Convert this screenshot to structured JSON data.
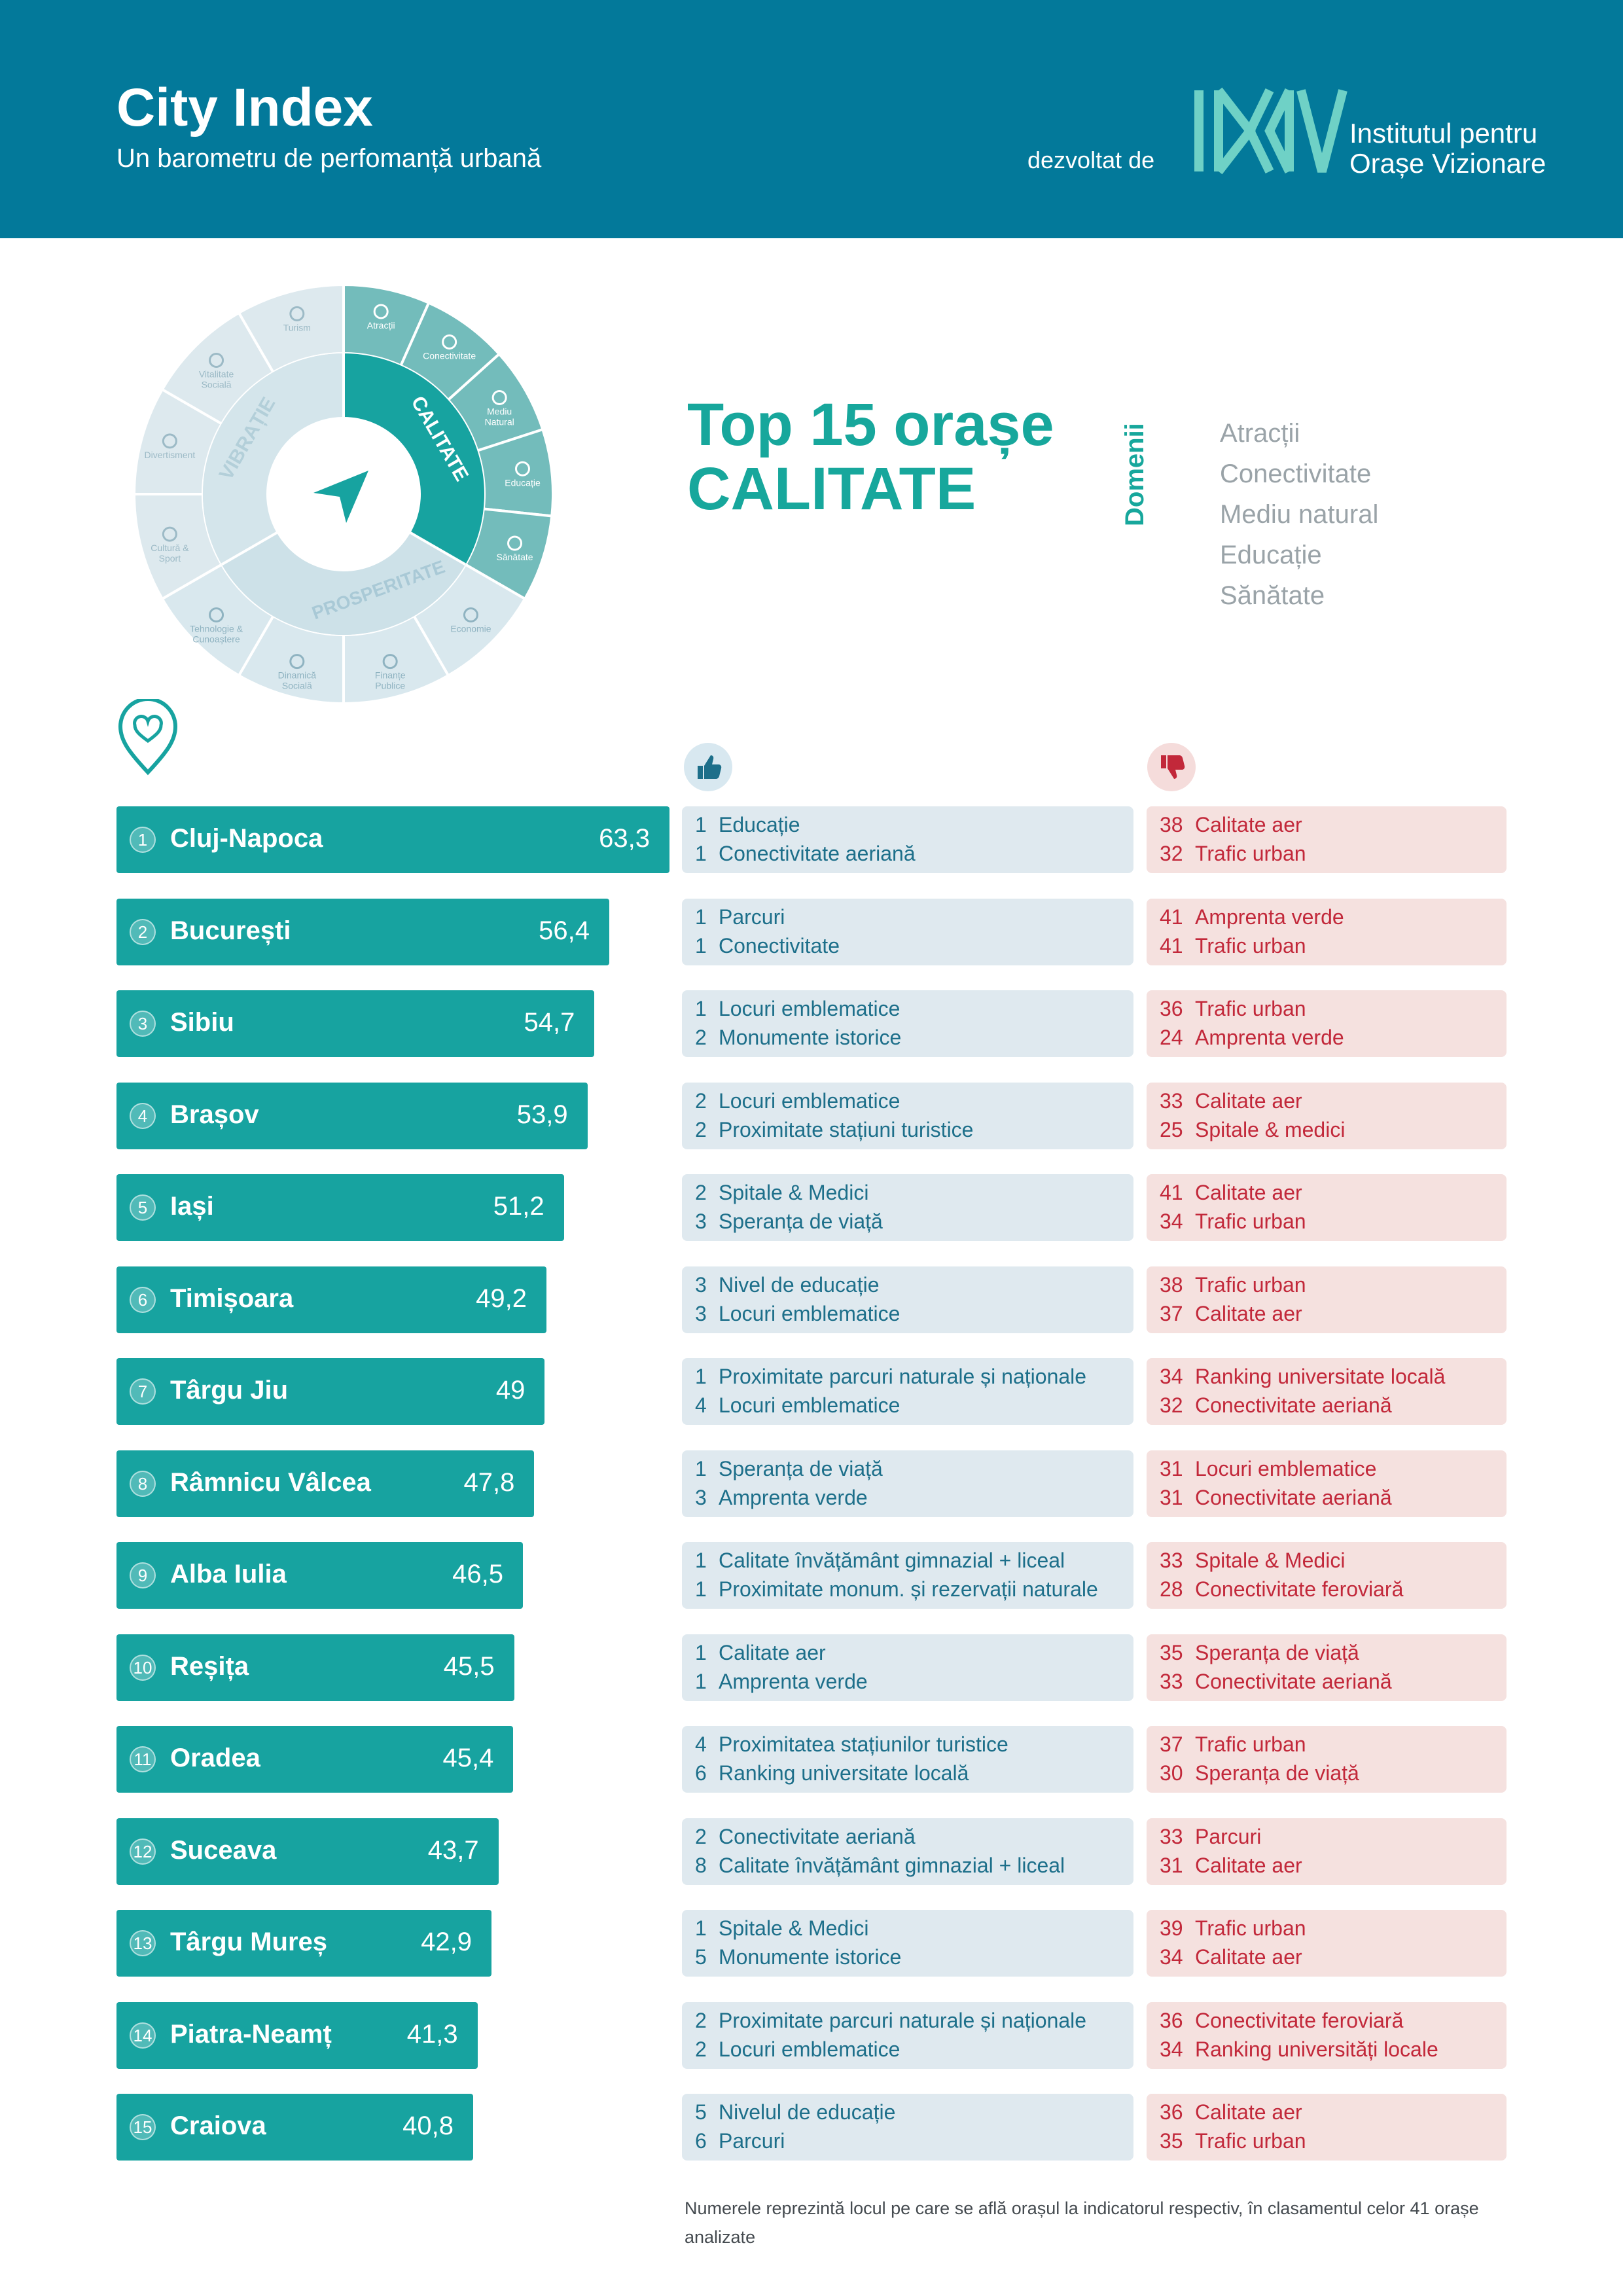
{
  "header": {
    "title": "City Index",
    "subtitle": "Un barometru de perfomanță urbană",
    "developed_by": "dezvoltat de",
    "logo_text": "IOV",
    "institute_line1": "Institutul pentru",
    "institute_line2": "Orașe Vizionare"
  },
  "wheel": {
    "pillars": [
      "CALITATE",
      "PROSPERITATE",
      "VIBRAȚIE"
    ],
    "segments": {
      "calitate": [
        {
          "label": "Atracții",
          "icon": "museum-icon"
        },
        {
          "label": "Conectivitate",
          "icon": "bus-icon"
        },
        {
          "label": "Mediu Natural",
          "icon": "tree-icon"
        },
        {
          "label": "Educație",
          "icon": "graduation-cap-icon"
        },
        {
          "label": "Sănătate",
          "icon": "health-shield-icon"
        }
      ],
      "prosperitate": [
        {
          "label": "Economie",
          "icon": "chart-icon"
        },
        {
          "label": "Finanțe Publice",
          "icon": "money-icon"
        },
        {
          "label": "Dinamică Socială",
          "icon": "people-icon"
        },
        {
          "label": "Tehnologie & Cunoaștere",
          "icon": "chip-icon"
        }
      ],
      "vibratie": [
        {
          "label": "Cultură & Sport",
          "icon": "ball-icon"
        },
        {
          "label": "Divertisment",
          "icon": "confetti-icon"
        },
        {
          "label": "Vitalitate Socială",
          "icon": "party-icon"
        },
        {
          "label": "Turism",
          "icon": "umbrella-icon"
        }
      ]
    }
  },
  "top_title_line1": "Top 15 orașe",
  "top_title_line2": "CALITATE",
  "domains": {
    "label": "Domenii",
    "items": [
      "Atracții",
      "Conectivitate",
      "Mediu natural",
      "Educație",
      "Sănătate"
    ]
  },
  "colors": {
    "header": "#03799a",
    "bar": "#17a3a0",
    "title": "#17a79c",
    "strong_bg": "#dfe9ef",
    "weak_bg": "#f5e1df",
    "weak_text": "#c2283a"
  },
  "chart_data": {
    "type": "bar",
    "orientation": "horizontal",
    "title": "Top 15 orașe CALITATE",
    "categories": [
      "Cluj-Napoca",
      "București",
      "Sibiu",
      "Brașov",
      "Iași",
      "Timișoara",
      "Târgu Jiu",
      "Râmnicu Vâlcea",
      "Alba Iulia",
      "Reșița",
      "Oradea",
      "Suceava",
      "Târgu Mureș",
      "Piatra-Neamț",
      "Craiova"
    ],
    "values": [
      63.3,
      56.4,
      54.7,
      53.9,
      51.2,
      49.2,
      49,
      47.8,
      46.5,
      45.5,
      45.4,
      43.7,
      42.9,
      41.3,
      40.8
    ],
    "rows": [
      {
        "rank": "1",
        "city": "Cluj-Napoca",
        "score": "63,3",
        "strong": [
          {
            "r": "1",
            "t": "Educație"
          },
          {
            "r": "1",
            "t": "Conectivitate aeriană"
          }
        ],
        "weak": [
          {
            "r": "38",
            "t": "Calitate aer"
          },
          {
            "r": "32",
            "t": "Trafic urban"
          }
        ]
      },
      {
        "rank": "2",
        "city": "București",
        "score": "56,4",
        "strong": [
          {
            "r": "1",
            "t": "Parcuri"
          },
          {
            "r": "1",
            "t": "Conectivitate"
          }
        ],
        "weak": [
          {
            "r": "41",
            "t": "Amprenta verde"
          },
          {
            "r": "41",
            "t": "Trafic urban"
          }
        ]
      },
      {
        "rank": "3",
        "city": "Sibiu",
        "score": "54,7",
        "strong": [
          {
            "r": "1",
            "t": "Locuri emblematice"
          },
          {
            "r": "2",
            "t": "Monumente istorice"
          }
        ],
        "weak": [
          {
            "r": "36",
            "t": "Trafic urban"
          },
          {
            "r": "24",
            "t": "Amprenta verde"
          }
        ]
      },
      {
        "rank": "4",
        "city": "Brașov",
        "score": "53,9",
        "strong": [
          {
            "r": "2",
            "t": "Locuri emblematice"
          },
          {
            "r": "2",
            "t": "Proximitate stațiuni turistice"
          }
        ],
        "weak": [
          {
            "r": "33",
            "t": "Calitate aer"
          },
          {
            "r": "25",
            "t": "Spitale & medici"
          }
        ]
      },
      {
        "rank": "5",
        "city": "Iași",
        "score": "51,2",
        "strong": [
          {
            "r": "2",
            "t": "Spitale & Medici"
          },
          {
            "r": "3",
            "t": "Speranța de viață"
          }
        ],
        "weak": [
          {
            "r": "41",
            "t": "Calitate aer"
          },
          {
            "r": "34",
            "t": "Trafic urban"
          }
        ]
      },
      {
        "rank": "6",
        "city": "Timișoara",
        "score": "49,2",
        "strong": [
          {
            "r": "3",
            "t": "Nivel de educație"
          },
          {
            "r": "3",
            "t": "Locuri emblematice"
          }
        ],
        "weak": [
          {
            "r": "38",
            "t": "Trafic urban"
          },
          {
            "r": "37",
            "t": "Calitate aer"
          }
        ]
      },
      {
        "rank": "7",
        "city": "Târgu Jiu",
        "score": "49",
        "strong": [
          {
            "r": "1",
            "t": "Proximitate parcuri naturale și naționale"
          },
          {
            "r": "4",
            "t": "Locuri emblematice"
          }
        ],
        "weak": [
          {
            "r": "34",
            "t": "Ranking universitate locală"
          },
          {
            "r": "32",
            "t": "Conectivitate aeriană"
          }
        ]
      },
      {
        "rank": "8",
        "city": "Râmnicu Vâlcea",
        "score": "47,8",
        "strong": [
          {
            "r": "1",
            "t": "Speranța de viață"
          },
          {
            "r": "3",
            "t": "Amprenta verde"
          }
        ],
        "weak": [
          {
            "r": "31",
            "t": "Locuri emblematice"
          },
          {
            "r": "31",
            "t": "Conectivitate aeriană"
          }
        ]
      },
      {
        "rank": "9",
        "city": "Alba Iulia",
        "score": "46,5",
        "strong": [
          {
            "r": "1",
            "t": "Calitate învățământ gimnazial + liceal"
          },
          {
            "r": "1",
            "t": "Proximitate monum. și rezervații naturale"
          }
        ],
        "weak": [
          {
            "r": "33",
            "t": "Spitale & Medici"
          },
          {
            "r": "28",
            "t": "Conectivitate feroviară"
          }
        ]
      },
      {
        "rank": "10",
        "city": "Reșița",
        "score": "45,5",
        "strong": [
          {
            "r": "1",
            "t": "Calitate aer"
          },
          {
            "r": "1",
            "t": "Amprenta verde"
          }
        ],
        "weak": [
          {
            "r": "35",
            "t": "Speranța de viață"
          },
          {
            "r": "33",
            "t": "Conectivitate aeriană"
          }
        ]
      },
      {
        "rank": "11",
        "city": "Oradea",
        "score": "45,4",
        "strong": [
          {
            "r": "4",
            "t": "Proximitatea stațiunilor turistice"
          },
          {
            "r": "6",
            "t": "Ranking universitate locală"
          }
        ],
        "weak": [
          {
            "r": "37",
            "t": "Trafic urban"
          },
          {
            "r": "30",
            "t": "Speranța de viață"
          }
        ]
      },
      {
        "rank": "12",
        "city": "Suceava",
        "score": "43,7",
        "strong": [
          {
            "r": "2",
            "t": "Conectivitate aeriană"
          },
          {
            "r": "8",
            "t": "Calitate învățământ gimnazial + liceal"
          }
        ],
        "weak": [
          {
            "r": "33",
            "t": "Parcuri"
          },
          {
            "r": "31",
            "t": "Calitate aer"
          }
        ]
      },
      {
        "rank": "13",
        "city": "Târgu Mureș",
        "score": "42,9",
        "strong": [
          {
            "r": "1",
            "t": "Spitale & Medici"
          },
          {
            "r": "5",
            "t": "Monumente istorice"
          }
        ],
        "weak": [
          {
            "r": "39",
            "t": "Trafic urban"
          },
          {
            "r": "34",
            "t": "Calitate aer"
          }
        ]
      },
      {
        "rank": "14",
        "city": "Piatra-Neamț",
        "score": "41,3",
        "strong": [
          {
            "r": "2",
            "t": "Proximitate parcuri naturale și naționale"
          },
          {
            "r": "2",
            "t": "Locuri emblematice"
          }
        ],
        "weak": [
          {
            "r": "36",
            "t": "Conectivitate feroviară"
          },
          {
            "r": "34",
            "t": "Ranking universități locale"
          }
        ]
      },
      {
        "rank": "15",
        "city": "Craiova",
        "score": "40,8",
        "strong": [
          {
            "r": "5",
            "t": "Nivelul de educație"
          },
          {
            "r": "6",
            "t": "Parcuri"
          }
        ],
        "weak": [
          {
            "r": "36",
            "t": "Calitate aer"
          },
          {
            "r": "35",
            "t": "Trafic urban"
          }
        ]
      }
    ]
  },
  "footnote": "Numerele reprezintă locul pe care se află orașul la indicatorul respectiv, în clasamentul celor 41 orașe analizate"
}
